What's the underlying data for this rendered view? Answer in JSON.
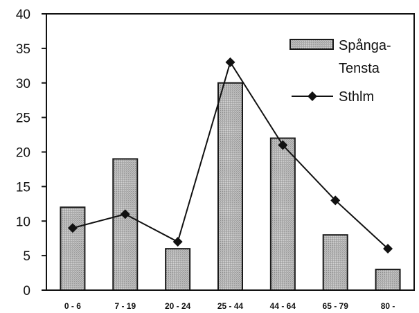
{
  "chart_data": {
    "type": "bar",
    "categories": [
      "0 - 6",
      "7 - 19",
      "20 - 24",
      "25 - 44",
      "44 - 64",
      "65 - 79",
      "80 -"
    ],
    "series": [
      {
        "name": "Spånga-Tensta",
        "type": "bar",
        "values": [
          12,
          19,
          6,
          30,
          22,
          8,
          3
        ]
      },
      {
        "name": "Sthlm",
        "type": "line",
        "values": [
          9,
          11,
          7,
          33,
          21,
          13,
          6
        ]
      }
    ],
    "legend": {
      "items": [
        {
          "lines": [
            "Spånga-",
            "Tensta"
          ]
        },
        {
          "lines": [
            "Sthlm"
          ]
        }
      ],
      "position": "top-right"
    },
    "ylim": [
      0,
      40
    ],
    "yticks": [
      "0",
      "5",
      "10",
      "15",
      "20",
      "25",
      "30",
      "35",
      "40"
    ],
    "title": "",
    "xlabel": "",
    "ylabel": "",
    "grid": false,
    "colors": {
      "bar_fill": "#b4b4b4",
      "bar_stroke": "#1a1a1a",
      "line": "#111111",
      "marker": "#111111"
    }
  }
}
